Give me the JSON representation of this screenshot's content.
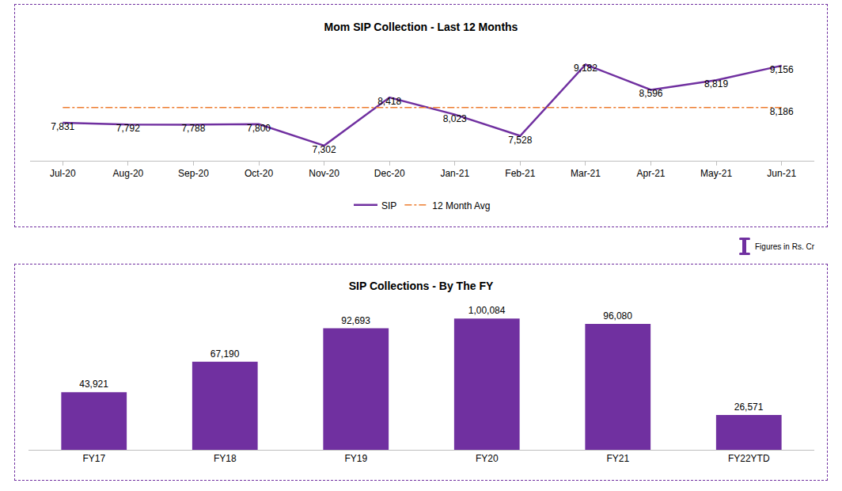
{
  "note": "Figures in Rs. Cr",
  "chart_data": [
    {
      "type": "line",
      "title": "Mom SIP Collection - Last 12 Months",
      "categories": [
        "Jul-20",
        "Aug-20",
        "Sep-20",
        "Oct-20",
        "Nov-20",
        "Dec-20",
        "Jan-21",
        "Feb-21",
        "Mar-21",
        "Apr-21",
        "May-21",
        "Jun-21"
      ],
      "series": [
        {
          "name": "SIP",
          "color": "#7030a0",
          "line_style": "solid",
          "values": [
            7831,
            7792,
            7788,
            7800,
            7302,
            8418,
            8023,
            7528,
            9182,
            8596,
            8819,
            9156
          ],
          "value_labels": [
            "7,831",
            "7,792",
            "7,788",
            "7,800",
            "7,302",
            "8,418",
            "8,023",
            "7,528",
            "9,182",
            "8,596",
            "8,819",
            "9,156"
          ]
        },
        {
          "name": "12 Month Avg",
          "color": "#ed7d31",
          "line_style": "dashdot",
          "values": [
            8186,
            8186,
            8186,
            8186,
            8186,
            8186,
            8186,
            8186,
            8186,
            8186,
            8186,
            8186
          ],
          "value_labels": [
            null,
            null,
            null,
            null,
            null,
            null,
            null,
            null,
            null,
            null,
            null,
            "8,186"
          ]
        }
      ],
      "ylim": [
        6950,
        9650
      ],
      "data_labels": true,
      "tick_labels": "x",
      "grid": false,
      "legend": "bottom"
    },
    {
      "type": "bar",
      "title": "SIP Collections - By The FY",
      "categories": [
        "FY17",
        "FY18",
        "FY19",
        "FY20",
        "FY21",
        "FY22YTD"
      ],
      "values": [
        43921,
        67190,
        92693,
        100084,
        96080,
        26571
      ],
      "value_labels": [
        "43,921",
        "67,190",
        "92,693",
        "1,00,084",
        "96,080",
        "26,571"
      ],
      "color": "#7030a0",
      "ylim": [
        0,
        113000
      ],
      "data_labels": true,
      "tick_labels": "x",
      "grid": false
    }
  ]
}
